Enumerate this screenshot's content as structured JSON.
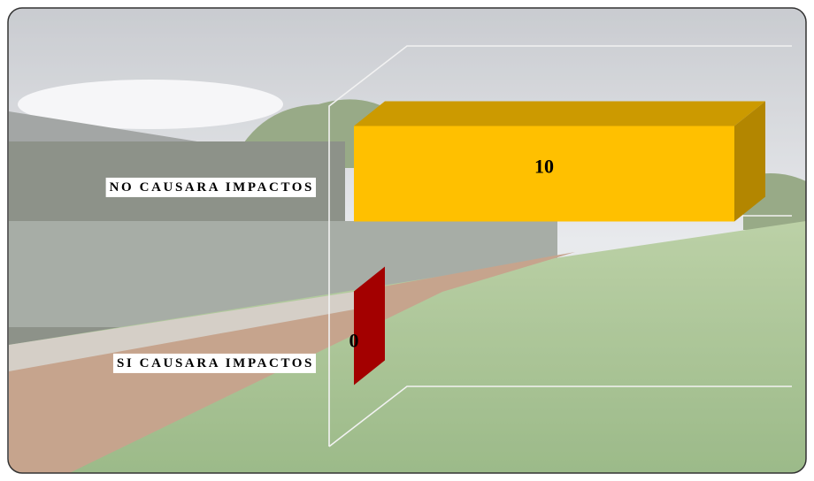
{
  "chart_data": {
    "type": "bar",
    "categories": [
      "NO CAUSARA IMPACTOS",
      "SI CAUSARA IMPACTOS"
    ],
    "values": [
      10,
      0
    ],
    "colors": [
      "#FFC000",
      "#C00000"
    ],
    "xlim": [
      0,
      12
    ]
  }
}
